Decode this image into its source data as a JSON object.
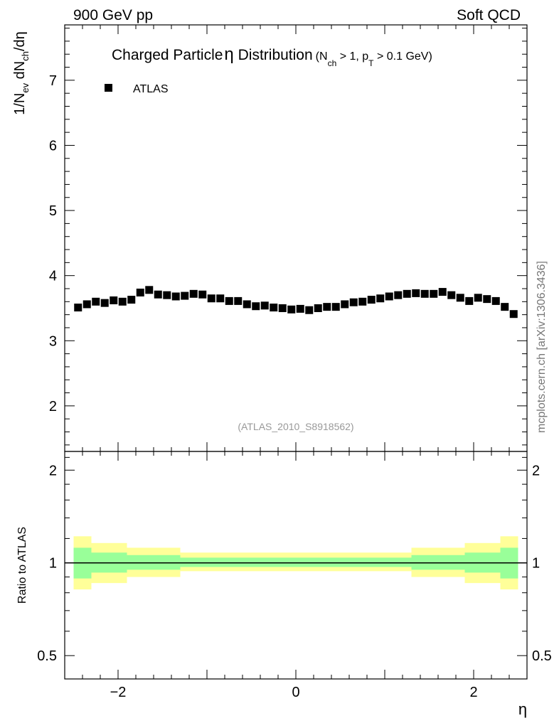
{
  "header": {
    "left": "900 GeV pp",
    "right": "Soft QCD"
  },
  "title_main": "Charged Particle",
  "title_eta": "η",
  "title_dist": " Distribution",
  "title_sub_open": "(N",
  "title_sub_ch": "ch",
  "title_sub_mid": " > 1, p",
  "title_sub_T": "T",
  "title_sub_close": " > 0.1 GeV)",
  "legend_label": "ATLAS",
  "analysis_id": "(ATLAS_2010_S8918562)",
  "side_credit": "mcplots.cern.ch [arXiv:1306.3436]",
  "ylabel_main": {
    "p1": "1/N",
    "sub1": "ev",
    "p2": " dN",
    "sub2": "ch",
    "p3": "/dη"
  },
  "ylabel_ratio": "Ratio to ATLAS",
  "xlabel": "η",
  "colors": {
    "marker": "#000000",
    "band_outer": "#ffff99",
    "band_inner": "#99ff99",
    "analysis_text": "#999999",
    "credit_text": "#777777"
  },
  "chart_data": {
    "type": "scatter",
    "series": [
      {
        "name": "ATLAS",
        "x": [
          -2.45,
          -2.35,
          -2.25,
          -2.15,
          -2.05,
          -1.95,
          -1.85,
          -1.75,
          -1.65,
          -1.55,
          -1.45,
          -1.35,
          -1.25,
          -1.15,
          -1.05,
          -0.95,
          -0.85,
          -0.75,
          -0.65,
          -0.55,
          -0.45,
          -0.35,
          -0.25,
          -0.15,
          -0.05,
          0.05,
          0.15,
          0.25,
          0.35,
          0.45,
          0.55,
          0.65,
          0.75,
          0.85,
          0.95,
          1.05,
          1.15,
          1.25,
          1.35,
          1.45,
          1.55,
          1.65,
          1.75,
          1.85,
          1.95,
          2.05,
          2.15,
          2.25,
          2.35,
          2.45
        ],
        "values": [
          3.51,
          3.56,
          3.6,
          3.58,
          3.62,
          3.6,
          3.63,
          3.74,
          3.78,
          3.71,
          3.7,
          3.68,
          3.69,
          3.72,
          3.71,
          3.65,
          3.65,
          3.61,
          3.61,
          3.56,
          3.53,
          3.54,
          3.51,
          3.5,
          3.48,
          3.49,
          3.47,
          3.5,
          3.52,
          3.52,
          3.56,
          3.59,
          3.6,
          3.63,
          3.65,
          3.68,
          3.7,
          3.72,
          3.73,
          3.72,
          3.72,
          3.75,
          3.7,
          3.66,
          3.61,
          3.66,
          3.64,
          3.61,
          3.52,
          3.41
        ]
      }
    ],
    "ratio_bands": {
      "edges": [
        -2.5,
        -2.3,
        -1.9,
        -1.3,
        1.3,
        1.9,
        2.3,
        2.5
      ],
      "inner_low": [
        0.89,
        0.93,
        0.95,
        0.97,
        0.95,
        0.93,
        0.89
      ],
      "inner_high": [
        1.12,
        1.08,
        1.06,
        1.04,
        1.06,
        1.08,
        1.12
      ],
      "outer_low": [
        0.82,
        0.86,
        0.9,
        0.94,
        0.9,
        0.86,
        0.82
      ],
      "outer_high": [
        1.22,
        1.16,
        1.12,
        1.08,
        1.12,
        1.16,
        1.22
      ]
    },
    "xlim": [
      -2.6,
      2.6
    ],
    "ylim_main": [
      1.3,
      7.85
    ],
    "ylim_ratio": [
      0.42,
      2.3
    ],
    "ratio_log_scale": true,
    "xticks": [
      "−2",
      "0",
      "2"
    ],
    "xtick_values": [
      -2,
      0,
      2
    ],
    "yticks_main": [
      "2",
      "3",
      "4",
      "5",
      "6",
      "7"
    ],
    "ytick_values_main": [
      2,
      3,
      4,
      5,
      6,
      7
    ],
    "yticks_ratio": [
      "0.5",
      "1",
      "2"
    ],
    "ytick_values_ratio": [
      0.5,
      1,
      2
    ],
    "legend_position": "top-left"
  }
}
